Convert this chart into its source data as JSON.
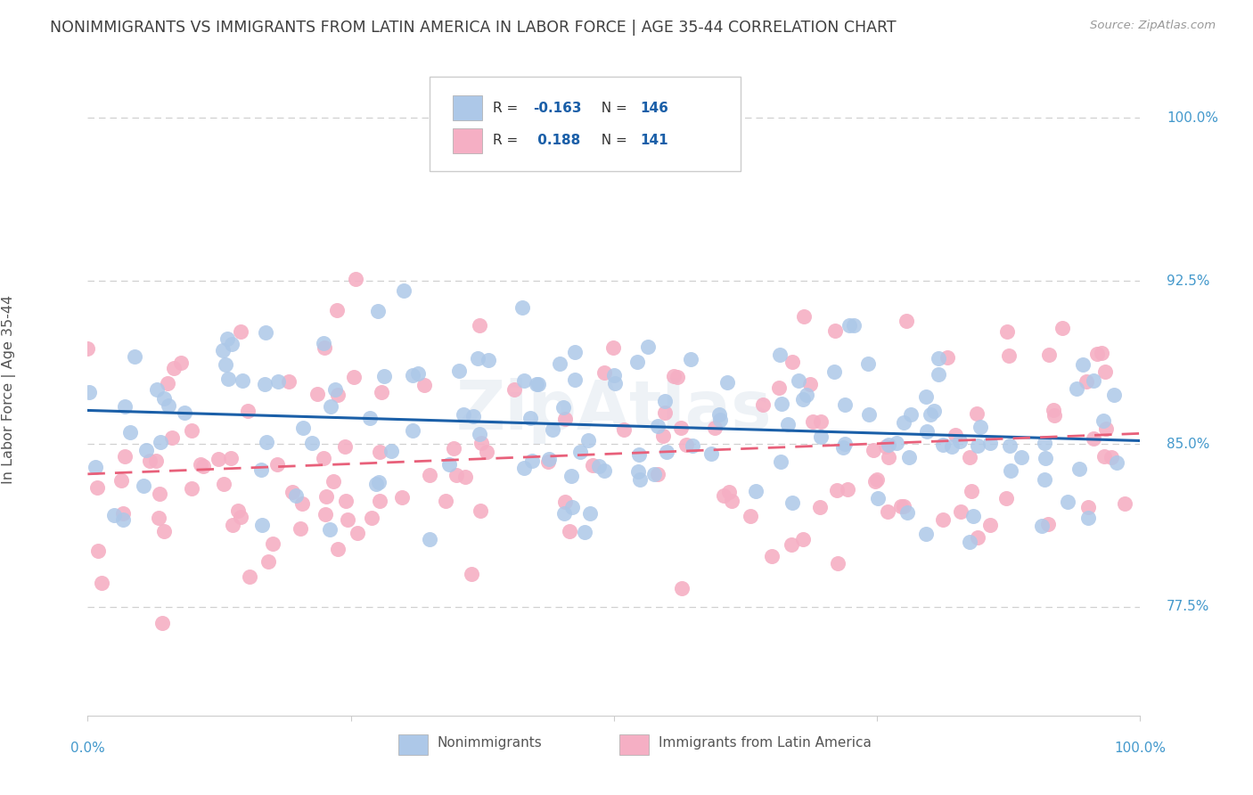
{
  "title": "NONIMMIGRANTS VS IMMIGRANTS FROM LATIN AMERICA IN LABOR FORCE | AGE 35-44 CORRELATION CHART",
  "source": "Source: ZipAtlas.com",
  "ylabel": "In Labor Force | Age 35-44",
  "ytick_labels": [
    "77.5%",
    "85.0%",
    "92.5%",
    "100.0%"
  ],
  "ytick_values": [
    77.5,
    85.0,
    92.5,
    100.0
  ],
  "xlim": [
    0.0,
    100.0
  ],
  "ylim": [
    72.5,
    102.5
  ],
  "blue_R": -0.163,
  "blue_N": 146,
  "pink_R": 0.188,
  "pink_N": 141,
  "blue_color": "#adc8e8",
  "pink_color": "#f5afc4",
  "blue_line_color": "#1a5fa8",
  "pink_line_color": "#e8607a",
  "legend_label_blue": "Nonimmigrants",
  "legend_label_pink": "Immigrants from Latin America",
  "title_color": "#404040",
  "axis_label_color": "#4499cc",
  "watermark": "ZipAtlas",
  "grid_color": "#d0d0d0"
}
